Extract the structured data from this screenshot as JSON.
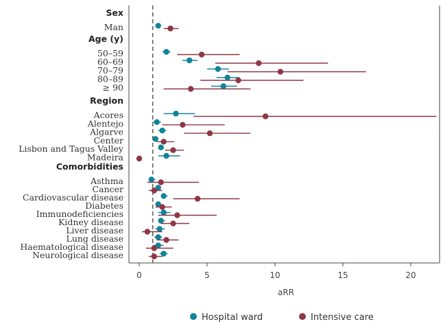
{
  "colors": {
    "hospital_ward": "#10849a",
    "intensive_care": "#8e3746",
    "axis": "#444444",
    "ref_line": "#333333"
  },
  "chart_data": {
    "type": "scatter",
    "subtype": "forest-plot",
    "xlabel": "aRR",
    "xlim": [
      -1,
      22.5
    ],
    "xticks": [
      0,
      5,
      10,
      15,
      20
    ],
    "reference_line": 1,
    "legend": {
      "placement": "bottom-center",
      "entries": [
        "Hospital ward",
        "Intensive care"
      ]
    },
    "groups": [
      {
        "name": "Sex",
        "rows": [
          {
            "label": "Man",
            "ward": {
              "est": 1.4,
              "lo": 1.2,
              "hi": 1.6
            },
            "icu": {
              "est": 2.3,
              "lo": 1.8,
              "hi": 2.9
            }
          }
        ]
      },
      {
        "name": "Age (y)",
        "rows": [
          {
            "label": "50–59",
            "ward": {
              "est": 2.0,
              "lo": 1.7,
              "hi": 2.3
            },
            "icu": {
              "est": 4.6,
              "lo": 2.8,
              "hi": 7.4
            }
          },
          {
            "label": "60–69",
            "ward": {
              "est": 3.7,
              "lo": 3.2,
              "hi": 4.3
            },
            "icu": {
              "est": 8.8,
              "lo": 5.6,
              "hi": 13.9
            }
          },
          {
            "label": "70–79",
            "ward": {
              "est": 5.8,
              "lo": 5.0,
              "hi": 6.6
            },
            "icu": {
              "est": 10.4,
              "lo": 6.5,
              "hi": 16.7
            }
          },
          {
            "label": "80–89",
            "ward": {
              "est": 6.5,
              "lo": 5.7,
              "hi": 7.4
            },
            "icu": {
              "est": 7.3,
              "lo": 4.5,
              "hi": 12.1
            }
          },
          {
            "label": "≥ 90",
            "ward": {
              "est": 6.2,
              "lo": 5.3,
              "hi": 7.2
            },
            "icu": {
              "est": 3.8,
              "lo": 1.8,
              "hi": 8.2
            }
          }
        ]
      },
      {
        "name": "Region",
        "rows": [
          {
            "label": "Acores",
            "ward": {
              "est": 2.7,
              "lo": 1.8,
              "hi": 4.1
            },
            "icu": {
              "est": 9.3,
              "lo": 4.0,
              "hi": 21.9
            }
          },
          {
            "label": "Alentejo",
            "ward": {
              "est": 1.3,
              "lo": 1.0,
              "hi": 1.6
            },
            "icu": {
              "est": 3.2,
              "lo": 1.7,
              "hi": 6.3
            }
          },
          {
            "label": "Algarve",
            "ward": {
              "est": 1.7,
              "lo": 1.4,
              "hi": 2.0
            },
            "icu": {
              "est": 5.2,
              "lo": 3.3,
              "hi": 8.2
            }
          },
          {
            "label": "Center",
            "ward": {
              "est": 1.2,
              "lo": 1.0,
              "hi": 1.4
            },
            "icu": {
              "est": 1.8,
              "lo": 1.3,
              "hi": 2.6
            }
          },
          {
            "label": "Lisbon and Tagus Valley",
            "ward": {
              "est": 1.6,
              "lo": 1.4,
              "hi": 1.8
            },
            "icu": {
              "est": 2.5,
              "lo": 1.9,
              "hi": 3.3
            }
          },
          {
            "label": "Madeira",
            "ward": {
              "est": 2.0,
              "lo": 1.4,
              "hi": 3.0
            },
            "icu": {
              "est": 0.0,
              "lo": 0.0,
              "hi": 0.0
            }
          }
        ]
      },
      {
        "name": "Comorbidities",
        "rows": [
          {
            "label": "Asthma",
            "ward": {
              "est": 0.9,
              "lo": 0.7,
              "hi": 1.2
            },
            "icu": {
              "est": 1.6,
              "lo": 0.6,
              "hi": 4.4
            }
          },
          {
            "label": "Cancer",
            "ward": {
              "est": 1.4,
              "lo": 1.2,
              "hi": 1.6
            },
            "icu": {
              "est": 1.1,
              "lo": 0.7,
              "hi": 1.7
            }
          },
          {
            "label": "Cardiovascular disease",
            "ward": {
              "est": 1.8,
              "lo": 1.6,
              "hi": 2.1
            },
            "icu": {
              "est": 4.3,
              "lo": 2.5,
              "hi": 7.4
            }
          },
          {
            "label": "Diabetes",
            "ward": {
              "est": 1.4,
              "lo": 1.2,
              "hi": 1.6
            },
            "icu": {
              "est": 1.7,
              "lo": 1.2,
              "hi": 2.4
            }
          },
          {
            "label": "Immunodeficiencies",
            "ward": {
              "est": 1.8,
              "lo": 1.4,
              "hi": 2.3
            },
            "icu": {
              "est": 2.8,
              "lo": 1.4,
              "hi": 5.7
            }
          },
          {
            "label": "Kidney disease",
            "ward": {
              "est": 1.6,
              "lo": 1.4,
              "hi": 1.9
            },
            "icu": {
              "est": 2.5,
              "lo": 1.6,
              "hi": 3.7
            }
          },
          {
            "label": "Liver disease",
            "ward": {
              "est": 1.5,
              "lo": 1.2,
              "hi": 1.9
            },
            "icu": {
              "est": 0.6,
              "lo": 0.2,
              "hi": 1.7
            }
          },
          {
            "label": "Lung disease",
            "ward": {
              "est": 1.4,
              "lo": 1.1,
              "hi": 1.7
            },
            "icu": {
              "est": 2.0,
              "lo": 1.3,
              "hi": 2.9
            }
          },
          {
            "label": "Haematological disease",
            "ward": {
              "est": 1.4,
              "lo": 1.0,
              "hi": 1.8
            },
            "icu": {
              "est": 1.1,
              "lo": 0.5,
              "hi": 2.5
            }
          },
          {
            "label": "Neurological disease",
            "ward": {
              "est": 1.8,
              "lo": 1.5,
              "hi": 2.1
            },
            "icu": {
              "est": 1.1,
              "lo": 0.7,
              "hi": 1.7
            }
          }
        ]
      }
    ]
  }
}
